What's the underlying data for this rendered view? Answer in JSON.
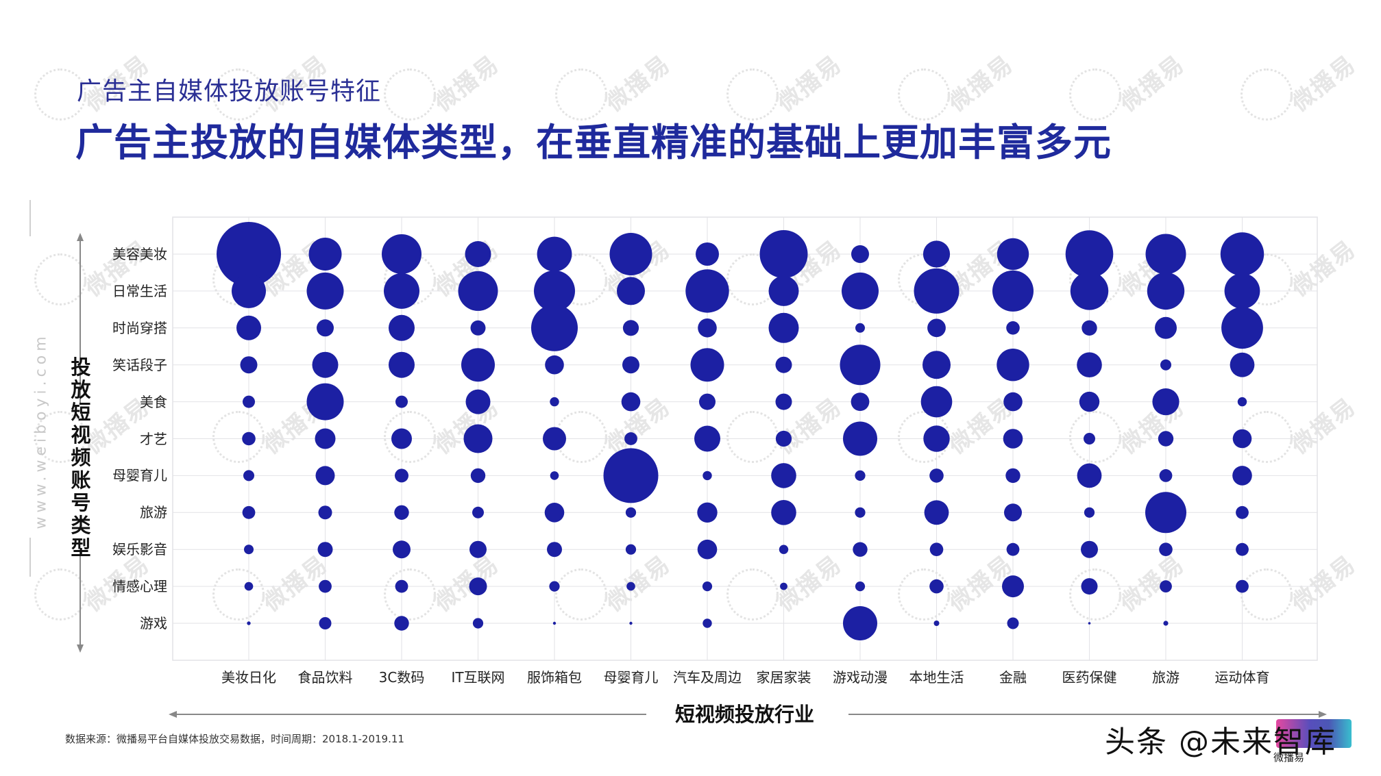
{
  "header": {
    "subtitle": "广告主自媒体投放账号特征",
    "headline": "广告主投放的自媒体类型，在垂直精准的基础上更加丰富多元"
  },
  "footer": {
    "source": "数据来源：微播易平台自媒体投放交易数据，时间周期：2018.1-2019.11",
    "credit": "头条 @未来智库",
    "credit_sub": "微播易",
    "side_url": "www.weiboyi.com",
    "watermark": "微播易"
  },
  "colors": {
    "bubble": "#1c20a3",
    "grid": "#e2e2e6",
    "axis_arrow": "#888888",
    "title": "#1f2a9c"
  },
  "chart_data": {
    "type": "scatter",
    "subtype": "bubble-matrix",
    "title": "广告主投放的自媒体类型，在垂直精准的基础上更加丰富多元",
    "xlabel": "短视频投放行业",
    "ylabel": "投放短视频账号类型",
    "grid": true,
    "legend": null,
    "x_categories": [
      "美妆日化",
      "食品饮料",
      "3C数码",
      "IT互联网",
      "服饰箱包",
      "母婴育儿",
      "汽车及周边",
      "家居家装",
      "游戏动漫",
      "本地生活",
      "金融",
      "医药保健",
      "旅游",
      "运动体育"
    ],
    "y_categories": [
      "美容美妆",
      "日常生活",
      "时尚穿搭",
      "笑话段子",
      "美食",
      "才艺",
      "母婴育儿",
      "旅游",
      "娱乐影音",
      "情感心理",
      "游戏"
    ],
    "value_note": "bubble radius in px (relative size estimated from image); rows follow y_categories order",
    "series": [
      {
        "name": "美妆日化",
        "values": [
          47,
          25,
          18,
          12.5,
          9,
          9.8,
          8,
          9.4,
          7,
          6.3,
          2.7
        ]
      },
      {
        "name": "食品饮料",
        "values": [
          24,
          27,
          12.5,
          19,
          27,
          15,
          14,
          10,
          11,
          9.4,
          9
        ]
      },
      {
        "name": "3C数码",
        "values": [
          29,
          26,
          19,
          19,
          9,
          15,
          10,
          10.7,
          13,
          9.4,
          10.7
        ]
      },
      {
        "name": "IT互联网",
        "values": [
          19,
          29,
          11,
          24.5,
          18,
          21,
          10.7,
          8.5,
          12.5,
          13,
          7.6
        ]
      },
      {
        "name": "服饰箱包",
        "values": [
          25.4,
          30,
          34,
          13.8,
          6.7,
          17,
          6.3,
          14.3,
          11,
          7.6,
          2.2
        ]
      },
      {
        "name": "母婴育儿",
        "values": [
          31,
          20.5,
          11.6,
          12.5,
          13.8,
          9.4,
          40,
          7.6,
          7.6,
          6.3,
          2.2
        ]
      },
      {
        "name": "汽车及周边",
        "values": [
          17,
          31.7,
          13.8,
          24.5,
          12,
          19,
          6.7,
          14.7,
          14.3,
          7.1,
          6.7
        ]
      },
      {
        "name": "家居家装",
        "values": [
          35,
          22,
          22,
          12,
          12,
          11.6,
          18.3,
          18.3,
          6.7,
          5.4,
          0
        ]
      },
      {
        "name": "游戏动漫",
        "values": [
          13,
          27,
          7,
          29.5,
          13.4,
          25,
          7.6,
          7.6,
          10.7,
          7.1,
          25
        ]
      },
      {
        "name": "本地生活",
        "values": [
          19.6,
          33,
          13.4,
          20.5,
          22.8,
          19.2,
          10.3,
          17.9,
          9.8,
          10.3,
          4
        ]
      },
      {
        "name": "金融",
        "values": [
          23.2,
          30,
          9.8,
          23.7,
          13.8,
          14.3,
          10.7,
          13,
          9.4,
          16,
          8.5
        ]
      },
      {
        "name": "医药保健",
        "values": [
          34.8,
          27.7,
          11.2,
          18.3,
          14.7,
          8.5,
          17.9,
          7.6,
          12.5,
          12,
          1.8
        ]
      },
      {
        "name": "旅游",
        "values": [
          29.5,
          27.2,
          16,
          8,
          19.6,
          11.2,
          9.4,
          30,
          9.8,
          8.9,
          3.6
        ]
      },
      {
        "name": "运动体育",
        "values": [
          31.7,
          25.9,
          30.4,
          17.9,
          6.7,
          13.8,
          14.3,
          9.4,
          9.4,
          9.4,
          0
        ]
      }
    ]
  }
}
